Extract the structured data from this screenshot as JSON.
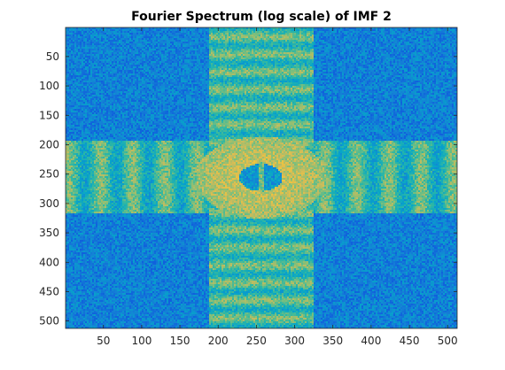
{
  "chart_data": {
    "type": "heatmap",
    "title": "Fourier Spectrum (log scale) of IMF 2",
    "xlabel": "",
    "ylabel": "",
    "xlim": [
      0.5,
      512.5
    ],
    "ylim": [
      0.5,
      512.5
    ],
    "y_reversed": true,
    "image_size": [
      512,
      512
    ],
    "colormap": "parula",
    "colormap_colors": [
      "#352a87",
      "#0f5cdd",
      "#1481d6",
      "#06a4ca",
      "#2eb7a4",
      "#87bf77",
      "#d1bb59",
      "#fec832",
      "#f9fb0e"
    ],
    "xticks": [
      50,
      100,
      150,
      200,
      250,
      300,
      350,
      400,
      450,
      500
    ],
    "yticks": [
      50,
      100,
      150,
      200,
      250,
      300,
      350,
      400,
      450,
      500
    ],
    "xtick_labels": [
      "50",
      "100",
      "150",
      "200",
      "250",
      "300",
      "350",
      "400",
      "450",
      "500"
    ],
    "ytick_labels": [
      "50",
      "100",
      "150",
      "200",
      "250",
      "300",
      "350",
      "400",
      "450",
      "500"
    ],
    "grid": false,
    "legend": "none"
  }
}
